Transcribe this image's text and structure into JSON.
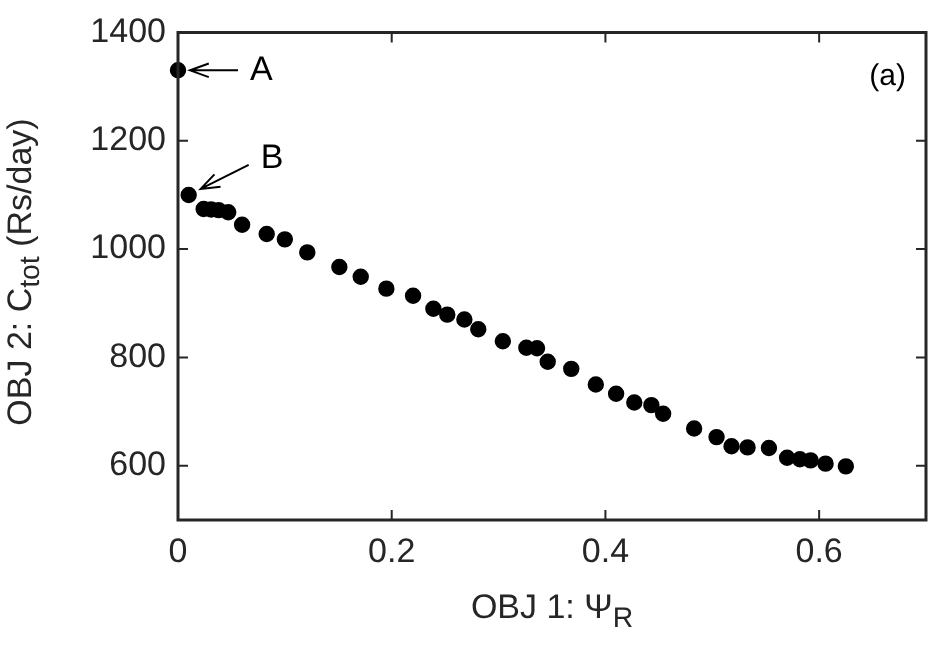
{
  "chart_data": {
    "type": "scatter",
    "xlabel": "OBJ 1:  Ψ$_{R}$",
    "ylabel": "OBJ 2:  C$_{tot}$ (Rs/day)",
    "x": [
      0,
      0.01,
      0.024,
      0.031,
      0.038,
      0.047,
      0.06,
      0.083,
      0.1,
      0.121,
      0.151,
      0.171,
      0.195,
      0.22,
      0.239,
      0.252,
      0.268,
      0.281,
      0.304,
      0.326,
      0.336,
      0.346,
      0.368,
      0.391,
      0.41,
      0.427,
      0.443,
      0.454,
      0.483,
      0.504,
      0.518,
      0.533,
      0.553,
      0.57,
      0.582,
      0.592,
      0.606,
      0.625
    ],
    "series": [
      {
        "color": "#000000",
        "values": [
          1330,
          1100,
          1074,
          1073,
          1072,
          1068,
          1045,
          1028,
          1018,
          994,
          967,
          949,
          927,
          914,
          890,
          879,
          870,
          852,
          830,
          818,
          817,
          792,
          779,
          750,
          733,
          717,
          712,
          696,
          669,
          653,
          636,
          634,
          633,
          615,
          612,
          610,
          604,
          599
        ]
      }
    ],
    "xlim": [
      0,
      0.7
    ],
    "xticks": [
      0,
      0.2,
      0.4,
      0.6
    ],
    "ylim": [
      500,
      1400
    ],
    "yticks": [
      600,
      800,
      1000,
      1200,
      1400
    ],
    "grid": false,
    "legend": false,
    "marker": "circle",
    "annotations": [
      {
        "text": "A",
        "x": 0,
        "y": 1330
      },
      {
        "text": "B",
        "x": 0.01,
        "y": 1100
      },
      "(a)"
    ]
  }
}
